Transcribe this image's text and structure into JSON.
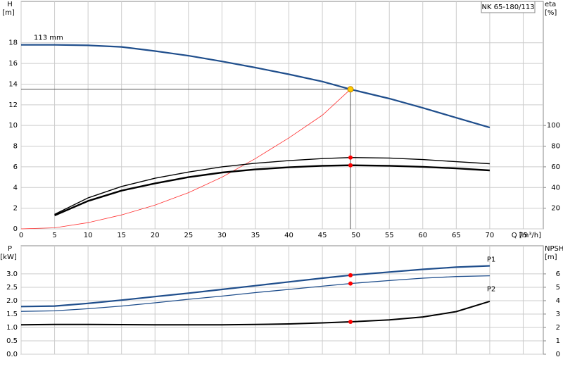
{
  "chart_data": [
    {
      "type": "line",
      "title": "NK 65-180/113",
      "x_label": "Q [m³/h]",
      "y_label": [
        "H",
        "[m]"
      ],
      "y2_label": [
        "eta",
        "[%]"
      ],
      "xlim": [
        0,
        78
      ],
      "xticks": [
        0,
        5,
        10,
        15,
        20,
        25,
        30,
        35,
        40,
        45,
        50,
        55,
        60,
        65,
        70,
        75
      ],
      "ylim": [
        0,
        22
      ],
      "yticks": [
        0,
        2,
        4,
        6,
        8,
        10,
        12,
        14,
        16,
        18
      ],
      "y2lim": [
        0,
        220
      ],
      "y2ticks": [
        20,
        40,
        60,
        80,
        100
      ],
      "grid": true,
      "series": [
        {
          "name": "113 mm",
          "color": "#1f4e8c",
          "width": 2.2,
          "x": [
            0,
            5,
            10,
            15,
            20,
            25,
            30,
            35,
            40,
            45,
            49.2,
            55,
            60,
            65,
            70
          ],
          "values": [
            17.8,
            17.8,
            17.75,
            17.6,
            17.2,
            16.75,
            16.2,
            15.6,
            14.95,
            14.25,
            13.5,
            12.6,
            11.7,
            10.75,
            9.8
          ]
        },
        {
          "color": "#ff3030",
          "width": 0.8,
          "x": [
            0,
            5,
            10,
            15,
            20,
            25,
            30,
            35,
            40,
            45,
            49.2
          ],
          "values": [
            0,
            0.1,
            0.6,
            1.35,
            2.3,
            3.5,
            5.0,
            6.8,
            8.8,
            11.0,
            13.5
          ]
        },
        {
          "color": "#000000",
          "width": 1.4,
          "axis": "y2",
          "x": [
            5,
            10,
            15,
            20,
            25,
            30,
            35,
            40,
            45,
            49.2,
            55,
            60,
            65,
            70
          ],
          "values": [
            14,
            30,
            41,
            49,
            55,
            60,
            63.5,
            66,
            68,
            69,
            68.5,
            67,
            65,
            63
          ]
        },
        {
          "color": "#000000",
          "width": 2.4,
          "axis": "y2",
          "x": [
            5,
            10,
            15,
            20,
            25,
            30,
            35,
            40,
            45,
            49.2,
            55,
            60,
            65,
            70
          ],
          "values": [
            13,
            27,
            37,
            44,
            50,
            54.5,
            57.5,
            59.5,
            61,
            61.5,
            61,
            60,
            58.5,
            56.5
          ]
        }
      ],
      "points": [
        {
          "x": 49.2,
          "y": 13.5,
          "color": "#ffcc00",
          "crosshair": true
        },
        {
          "x": 49.2,
          "y": 69,
          "color": "#ff0000",
          "axis": "y2"
        },
        {
          "x": 49.2,
          "y": 61.5,
          "color": "#ff0000",
          "axis": "y2"
        }
      ]
    },
    {
      "type": "line",
      "y_label": [
        "P",
        "[kW]"
      ],
      "y2_label": [
        "NPSH",
        "[m]"
      ],
      "xlim": [
        0,
        78
      ],
      "xticks": [
        0,
        5,
        10,
        15,
        20,
        25,
        30,
        35,
        40,
        45,
        50,
        55,
        60,
        65,
        70,
        75
      ],
      "ylim": [
        0,
        4.05
      ],
      "yticks": [
        {
          "value": 0,
          "label": "0.0"
        },
        0.5,
        {
          "value": 1,
          "label": "1.0"
        },
        1.5,
        {
          "value": 2,
          "label": "2.0"
        },
        2.5,
        {
          "value": 3,
          "label": "3.0"
        }
      ],
      "y2lim": [
        0,
        8.1
      ],
      "y2ticks": [
        0,
        1,
        2,
        3,
        4,
        5,
        6
      ],
      "grid": true,
      "series": [
        {
          "name": "P1",
          "color": "#1f4e8c",
          "width": 2.2,
          "x": [
            0,
            5,
            10,
            15,
            20,
            25,
            30,
            35,
            40,
            45,
            49.2,
            55,
            60,
            65,
            70
          ],
          "values": [
            1.78,
            1.8,
            1.9,
            2.02,
            2.15,
            2.28,
            2.42,
            2.56,
            2.7,
            2.84,
            2.95,
            3.07,
            3.17,
            3.25,
            3.3
          ]
        },
        {
          "name": "P2",
          "color": "#1f4e8c",
          "width": 1.3,
          "x": [
            0,
            5,
            10,
            15,
            20,
            25,
            30,
            35,
            40,
            45,
            49.2,
            55,
            60,
            65,
            70
          ],
          "values": [
            1.6,
            1.62,
            1.7,
            1.8,
            1.92,
            2.05,
            2.17,
            2.3,
            2.42,
            2.54,
            2.64,
            2.75,
            2.84,
            2.9,
            2.93
          ]
        },
        {
          "color": "#000000",
          "width": 2,
          "axis": "y2",
          "x": [
            0,
            5,
            10,
            20,
            30,
            35,
            40,
            45,
            49.2,
            55,
            60,
            65,
            70
          ],
          "values": [
            2.2,
            2.22,
            2.22,
            2.2,
            2.2,
            2.22,
            2.26,
            2.34,
            2.42,
            2.56,
            2.78,
            3.18,
            3.95
          ]
        }
      ],
      "points": [
        {
          "x": 49.2,
          "y": 2.95,
          "color": "#ff0000"
        },
        {
          "x": 49.2,
          "y": 2.64,
          "color": "#ff0000"
        },
        {
          "x": 49.2,
          "y": 2.42,
          "color": "#ff0000",
          "axis": "y2"
        }
      ]
    }
  ]
}
